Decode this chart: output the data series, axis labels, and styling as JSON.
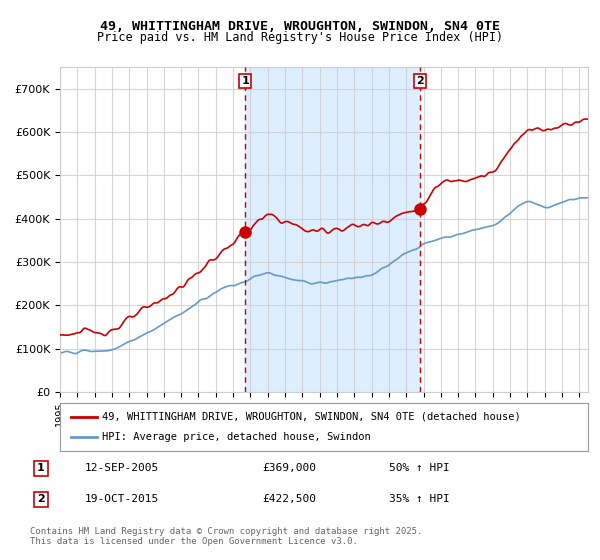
{
  "title1": "49, WHITTINGHAM DRIVE, WROUGHTON, SWINDON, SN4 0TE",
  "title2": "Price paid vs. HM Land Registry's House Price Index (HPI)",
  "legend1": "49, WHITTINGHAM DRIVE, WROUGHTON, SWINDON, SN4 0TE (detached house)",
  "legend2": "HPI: Average price, detached house, Swindon",
  "annotation1_label": "1",
  "annotation1_date": "12-SEP-2005",
  "annotation1_price": "£369,000",
  "annotation1_hpi": "50% ↑ HPI",
  "annotation2_label": "2",
  "annotation2_date": "19-OCT-2015",
  "annotation2_price": "£422,500",
  "annotation2_hpi": "35% ↑ HPI",
  "footer": "Contains HM Land Registry data © Crown copyright and database right 2025.\nThis data is licensed under the Open Government Licence v3.0.",
  "line1_color": "#cc0000",
  "line2_color": "#6699cc",
  "vline1_color": "#cc0000",
  "vline2_color": "#cc0000",
  "shade_color": "#ddeeff",
  "dot_color": "#cc0000",
  "background_color": "#ffffff",
  "grid_color": "#cccccc",
  "ylim": [
    0,
    750000
  ],
  "xlim_start": 1995.0,
  "xlim_end": 2025.5,
  "vline1_x": 2005.7,
  "vline2_x": 2015.8,
  "dot1_x": 2005.7,
  "dot1_y": 369000,
  "dot2_x": 2015.8,
  "dot2_y": 422500
}
